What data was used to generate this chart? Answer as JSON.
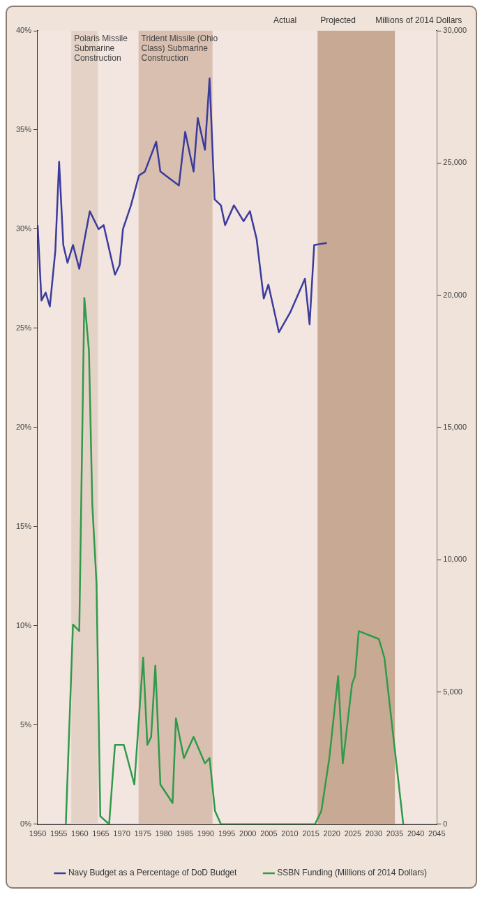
{
  "chart_data": {
    "type": "line",
    "xlim": [
      1950,
      2045
    ],
    "xticks": [
      1950,
      1955,
      1960,
      1965,
      1970,
      1975,
      1980,
      1985,
      1990,
      1995,
      2000,
      2005,
      2010,
      2015,
      2020,
      2025,
      2030,
      2035,
      2040,
      2045
    ],
    "ylim": [
      0,
      40
    ],
    "yticks": [
      {
        "value": 0,
        "label": "0%"
      },
      {
        "value": 5,
        "label": "5%"
      },
      {
        "value": 10,
        "label": "10%"
      },
      {
        "value": 15,
        "label": "15%"
      },
      {
        "value": 20,
        "label": "20%"
      },
      {
        "value": 25,
        "label": "25%"
      },
      {
        "value": 30,
        "label": "30%"
      },
      {
        "value": 35,
        "label": "35%"
      },
      {
        "value": 40,
        "label": "40%"
      }
    ],
    "y2lim": [
      0,
      30000
    ],
    "y2ticks": [
      0,
      {
        "value": 5000,
        "label": "5,000"
      },
      {
        "value": 10000,
        "label": "10,000"
      },
      {
        "value": 15000,
        "label": "15,000"
      },
      {
        "value": 20000,
        "label": "20,000"
      },
      {
        "value": 25000,
        "label": "25,000"
      },
      {
        "value": 30000,
        "label": "30,000"
      }
    ],
    "y2label": "Millions of 2014 Dollars",
    "grid": false,
    "legend": "bottom",
    "marker": "none",
    "line_style": "solid",
    "series": [
      {
        "name": "Navy Budget as a Percentage of DoD Budget",
        "color": "#3b3b9c",
        "x": [
          1950,
          1950.9,
          1951.9,
          1952.9,
          1954.2,
          1955.1,
          1956.1,
          1957.1,
          1958.4,
          1959.9,
          1960.9,
          1962.4,
          1964.5,
          1965.7,
          1968.4,
          1969.5,
          1970.3,
          1972.2,
          1974.1,
          1975.5,
          1978.2,
          1979.2,
          1983.6,
          1985.1,
          1987.1,
          1988.1,
          1989.8,
          1990.9,
          1992.1,
          1993.6,
          1994.6,
          1996.7,
          1999,
          2000.5,
          2002.1,
          2003.8,
          2004.9,
          2007.4,
          2010.1,
          2013.6,
          2014.7,
          2015.8,
          2018.8
        ],
        "values": [
          30.2,
          26.4,
          26.8,
          26.1,
          28.9,
          33.4,
          29.2,
          28.3,
          29.2,
          28,
          29.2,
          30.9,
          30,
          30.2,
          27.7,
          28.2,
          30,
          31.2,
          32.7,
          32.9,
          34.4,
          32.9,
          32.2,
          34.9,
          32.9,
          35.6,
          34,
          37.6,
          31.5,
          31.2,
          30.2,
          31.2,
          30.4,
          30.9,
          29.5,
          26.5,
          27.2,
          24.8,
          25.8,
          27.5,
          25.2,
          29.2,
          29.3
        ]
      },
      {
        "name": "SSBN Funding (Millions of 2014 Dollars)",
        "color": "#2f9a4a",
        "axis": "y2",
        "x": [
          1956.7,
          1958.4,
          1959.9,
          1961.1,
          1962.2,
          1963,
          1964,
          1964.9,
          1967,
          1968.4,
          1970.5,
          1973,
          1975.1,
          1976.1,
          1977,
          1978,
          1979.2,
          1982.1,
          1982.9,
          1984.8,
          1987.1,
          1989.8,
          1990.9,
          1992.2,
          1993.6,
          2016,
          2017.5,
          2019.4,
          2021.5,
          2022.6,
          2024.8,
          2025.5,
          2026.4,
          2031.2,
          2032.5,
          2037
        ],
        "values": [
          0,
          7550,
          7300,
          19900,
          17900,
          12100,
          9100,
          300,
          0,
          3000,
          3000,
          1500,
          6300,
          3000,
          3300,
          6000,
          1500,
          800,
          4000,
          2500,
          3300,
          2300,
          2500,
          500,
          0,
          0,
          500,
          2500,
          5600,
          2300,
          5300,
          5600,
          7300,
          7000,
          6300,
          0
        ]
      }
    ],
    "bands": [
      {
        "axis": "x",
        "from": 1958,
        "to": 1964.3,
        "label": "Polaris Missile Submarine Construction",
        "color": "#e4d2c6"
      },
      {
        "axis": "x",
        "from": 1974,
        "to": 1991.6,
        "label": "Trident Missile (Ohio Class) Submarine Construction",
        "color": "#d9bfb0"
      },
      {
        "axis": "x",
        "from": 2016.6,
        "to": 2035,
        "color": "#c8aa94"
      }
    ],
    "annotations": [
      "Actual",
      "Projected"
    ]
  }
}
